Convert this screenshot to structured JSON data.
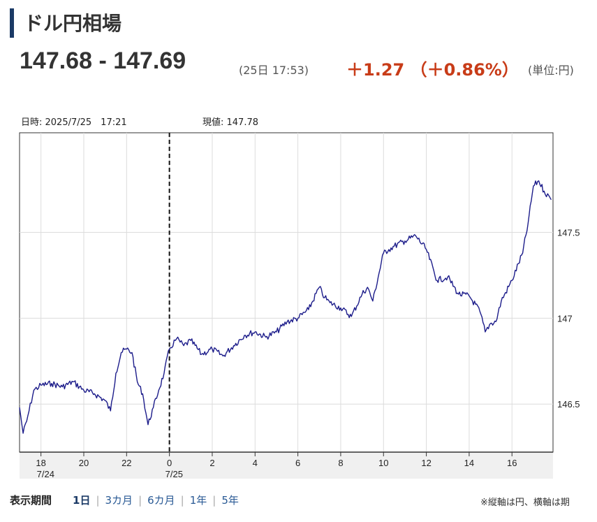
{
  "header": {
    "title": "ドル円相場",
    "price": "147.68 - 147.69",
    "time": "(25日 17:53)",
    "change": "＋1.27 （＋0.86%）",
    "unit": "(単位:円)"
  },
  "hover": {
    "date_label": "日時: 2025/7/25　17:21",
    "value_label": "現値: 147.78"
  },
  "periods": {
    "label": "表示期間",
    "options": [
      "1日",
      "3カ月",
      "6カ月",
      "1年",
      "5年"
    ]
  },
  "note": "※縦軸は円、横軸は期",
  "colors": {
    "line": "#1c1c8a",
    "change": "#c83c18",
    "accent": "#1b3a66"
  },
  "chart_data": {
    "type": "line",
    "xlabel": "",
    "ylabel": "",
    "ylim": [
      146.22,
      148.08
    ],
    "xlim": [
      "2025-07-24 17:00",
      "2025-07-25 17:55"
    ],
    "yticks": [
      146.5,
      147,
      147.5
    ],
    "ytick_labels": [
      "146.5",
      "147",
      "147.5"
    ],
    "xticks": [
      "2025-07-24 18:00",
      "2025-07-24 20:00",
      "2025-07-24 22:00",
      "2025-07-25 00:00",
      "2025-07-25 02:00",
      "2025-07-25 04:00",
      "2025-07-25 06:00",
      "2025-07-25 08:00",
      "2025-07-25 10:00",
      "2025-07-25 12:00",
      "2025-07-25 14:00",
      "2025-07-25 16:00"
    ],
    "xtick_labels": [
      "18",
      "20",
      "22",
      "0",
      "2",
      "4",
      "6",
      "8",
      "10",
      "12",
      "14",
      "16"
    ],
    "date_labels": [
      {
        "x": "2025-07-24 18:00",
        "text": "7/24"
      },
      {
        "x": "2025-07-25 00:00",
        "text": "7/25"
      }
    ],
    "day_boundary": "2025-07-25 00:00",
    "grid": true,
    "series": [
      {
        "x": [
          "2025-07-24 17:00",
          "2025-07-24 17:10",
          "2025-07-24 17:20",
          "2025-07-24 17:40",
          "2025-07-24 18:00",
          "2025-07-24 18:30",
          "2025-07-24 19:00",
          "2025-07-24 19:30",
          "2025-07-24 20:00",
          "2025-07-24 20:30",
          "2025-07-24 21:00",
          "2025-07-24 21:15",
          "2025-07-24 21:30",
          "2025-07-24 21:45",
          "2025-07-24 22:00",
          "2025-07-24 22:15",
          "2025-07-24 22:30",
          "2025-07-24 22:45",
          "2025-07-24 23:00",
          "2025-07-24 23:15",
          "2025-07-24 23:30",
          "2025-07-24 23:45",
          "2025-07-25 00:00",
          "2025-07-25 00:20",
          "2025-07-25 00:40",
          "2025-07-25 01:00",
          "2025-07-25 01:30",
          "2025-07-25 02:00",
          "2025-07-25 02:30",
          "2025-07-25 03:00",
          "2025-07-25 03:30",
          "2025-07-25 04:00",
          "2025-07-25 04:30",
          "2025-07-25 05:00",
          "2025-07-25 05:30",
          "2025-07-25 06:00",
          "2025-07-25 06:30",
          "2025-07-25 07:00",
          "2025-07-25 07:15",
          "2025-07-25 07:30",
          "2025-07-25 08:00",
          "2025-07-25 08:30",
          "2025-07-25 09:00",
          "2025-07-25 09:15",
          "2025-07-25 09:30",
          "2025-07-25 10:00",
          "2025-07-25 10:15",
          "2025-07-25 10:30",
          "2025-07-25 11:00",
          "2025-07-25 11:30",
          "2025-07-25 12:00",
          "2025-07-25 12:30",
          "2025-07-25 13:00",
          "2025-07-25 13:30",
          "2025-07-25 14:00",
          "2025-07-25 14:30",
          "2025-07-25 14:45",
          "2025-07-25 15:00",
          "2025-07-25 15:15",
          "2025-07-25 15:30",
          "2025-07-25 16:00",
          "2025-07-25 16:30",
          "2025-07-25 16:45",
          "2025-07-25 17:00",
          "2025-07-25 17:15",
          "2025-07-25 17:30",
          "2025-07-25 17:50"
        ],
        "y": [
          146.48,
          146.33,
          146.4,
          146.58,
          146.61,
          146.62,
          146.6,
          146.63,
          146.58,
          146.56,
          146.52,
          146.46,
          146.68,
          146.8,
          146.82,
          146.8,
          146.63,
          146.56,
          146.38,
          146.48,
          146.58,
          146.68,
          146.82,
          146.88,
          146.84,
          146.87,
          146.79,
          146.82,
          146.78,
          146.84,
          146.9,
          146.92,
          146.89,
          146.92,
          146.98,
          147.0,
          147.05,
          147.18,
          147.12,
          147.09,
          147.06,
          147.01,
          147.14,
          147.18,
          147.1,
          147.38,
          147.4,
          147.42,
          147.45,
          147.48,
          147.4,
          147.22,
          147.24,
          147.14,
          147.13,
          147.04,
          146.92,
          146.97,
          146.98,
          147.1,
          147.22,
          147.38,
          147.55,
          147.77,
          147.8,
          147.74,
          147.69
        ]
      }
    ]
  }
}
